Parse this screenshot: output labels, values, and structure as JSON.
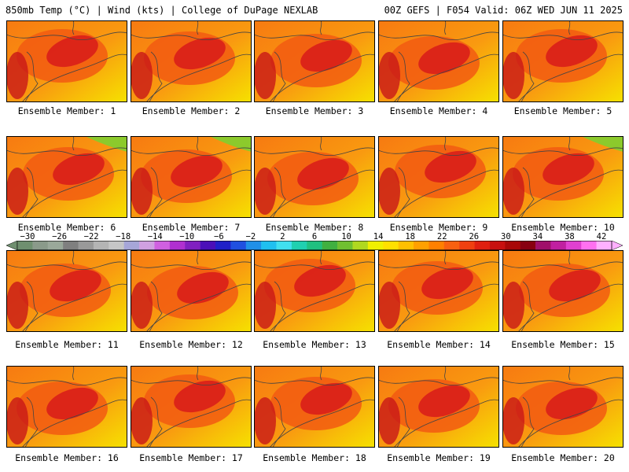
{
  "header": {
    "left_title": "850mb Temp (°C) | Wind (kts) | College of DuPage NEXLAB",
    "right_title": "00Z GEFS | F054 Valid: 06Z WED JUN 11 2025"
  },
  "panels": [
    {
      "label": "Ensemble Member: 1"
    },
    {
      "label": "Ensemble Member: 2"
    },
    {
      "label": "Ensemble Member: 3"
    },
    {
      "label": "Ensemble Member: 4"
    },
    {
      "label": "Ensemble Member: 5"
    },
    {
      "label": "Ensemble Member: 6"
    },
    {
      "label": "Ensemble Member: 7"
    },
    {
      "label": "Ensemble Member: 8"
    },
    {
      "label": "Ensemble Member: 9"
    },
    {
      "label": "Ensemble Member: 10"
    },
    {
      "label": "Ensemble Member: 11"
    },
    {
      "label": "Ensemble Member: 12"
    },
    {
      "label": "Ensemble Member: 13"
    },
    {
      "label": "Ensemble Member: 14"
    },
    {
      "label": "Ensemble Member: 15"
    },
    {
      "label": "Ensemble Member: 16"
    },
    {
      "label": "Ensemble Member: 17"
    },
    {
      "label": "Ensemble Member: 18"
    },
    {
      "label": "Ensemble Member: 19"
    },
    {
      "label": "Ensemble Member: 20"
    }
  ],
  "colorbar": {
    "ticks": [
      "−30",
      "−26",
      "−22",
      "−18",
      "−14",
      "−10",
      "−6",
      "−2",
      "2",
      "6",
      "10",
      "14",
      "18",
      "22",
      "26",
      "30",
      "34",
      "38",
      "42"
    ],
    "colors": [
      "#6f8f6f",
      "#8a9a8a",
      "#9aa89a",
      "#7f7f7f",
      "#999999",
      "#b4b4b4",
      "#c6c6c6",
      "#a6a6d8",
      "#d0a0e0",
      "#d060e0",
      "#b030d0",
      "#8020c0",
      "#4b0fb8",
      "#2020c8",
      "#2050e0",
      "#2090e8",
      "#20c0f0",
      "#40e0f0",
      "#20d0b0",
      "#20c080",
      "#40b040",
      "#70c030",
      "#b0d820",
      "#f0f000",
      "#ffe000",
      "#ffc000",
      "#ffa000",
      "#ff8000",
      "#f86010",
      "#f04010",
      "#e02010",
      "#c81010",
      "#a80808",
      "#880010",
      "#a0106a",
      "#c020a0",
      "#e040d0",
      "#ff70f0",
      "#ffb0ff"
    ]
  },
  "legend_colors": {
    "hot_red": "#d71a1a",
    "warm_orange": "#f77a11",
    "yellow": "#f6e200",
    "green": "#7fcf30",
    "contour": "#444444"
  }
}
